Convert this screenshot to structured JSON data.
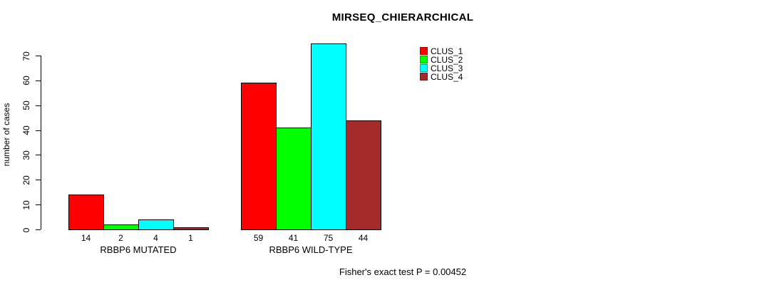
{
  "chart_data": {
    "type": "bar",
    "title": "MIRSEQ_CHIERARCHICAL",
    "xlabel": "",
    "ylabel": "number of cases",
    "ylim": [
      0,
      70
    ],
    "yticks": [
      0,
      10,
      20,
      30,
      40,
      50,
      60,
      70
    ],
    "categories": [
      "RBBP6 MUTATED",
      "RBBP6 WILD-TYPE"
    ],
    "series": [
      {
        "name": "CLUS_1",
        "color": "#ff0000",
        "values": [
          14,
          59
        ]
      },
      {
        "name": "CLUS_2",
        "color": "#00ff00",
        "values": [
          2,
          41
        ]
      },
      {
        "name": "CLUS_3",
        "color": "#00ffff",
        "values": [
          4,
          75
        ]
      },
      {
        "name": "CLUS_4",
        "color": "#a52a2a",
        "values": [
          1,
          44
        ]
      }
    ],
    "bar_value_labels": [
      [
        "14",
        "2",
        "4",
        "1"
      ],
      [
        "59",
        "41",
        "75",
        "44"
      ]
    ],
    "legend_position": "top-right",
    "grid": false,
    "annotation": "Fisher's exact test P = 0.00452"
  },
  "colors": {
    "axis": "#000000",
    "background": "#ffffff",
    "bar_border": "#000000"
  }
}
